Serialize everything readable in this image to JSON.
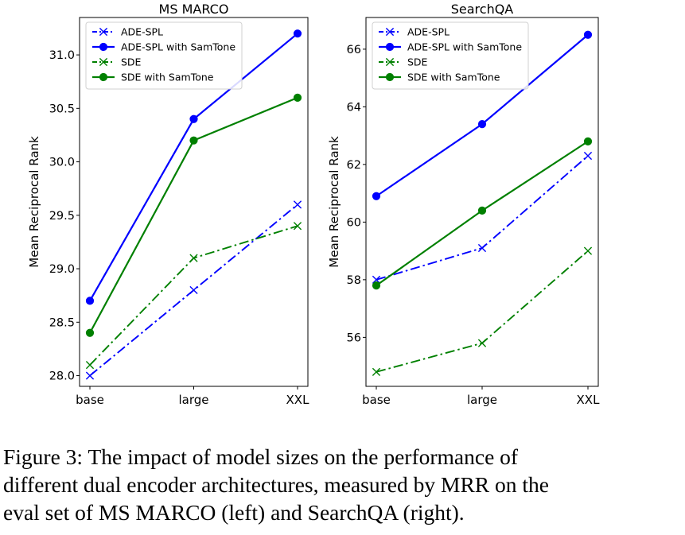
{
  "caption": {
    "line1": "Figure 3:  The impact of model sizes on the performance of",
    "line2": "different dual encoder architectures, measured by MRR on the",
    "line3": "eval set of MS MARCO (left) and SearchQA (right)."
  },
  "chart_data": [
    {
      "type": "line",
      "title": "MS MARCO",
      "xlabel": "",
      "ylabel": "Mean Reciprocal Rank",
      "categories": [
        "base",
        "large",
        "XXL"
      ],
      "ylim": [
        27.9,
        31.35
      ],
      "yticks": [
        28.0,
        28.5,
        29.0,
        29.5,
        30.0,
        30.5,
        31.0
      ],
      "ytick_labels": [
        "28.0",
        "28.5",
        "29.0",
        "29.5",
        "30.0",
        "30.5",
        "31.0"
      ],
      "legend_position": "top-left",
      "series": [
        {
          "name": "ADE-SPL",
          "values": [
            28.0,
            28.8,
            29.6
          ],
          "color": "#0000ff",
          "style": "dashdot",
          "marker": "x"
        },
        {
          "name": "ADE-SPL with SamTone",
          "values": [
            28.7,
            30.4,
            31.2
          ],
          "color": "#0000ff",
          "style": "solid",
          "marker": "o"
        },
        {
          "name": "SDE",
          "values": [
            28.1,
            29.1,
            29.4
          ],
          "color": "#008000",
          "style": "dashdot",
          "marker": "x"
        },
        {
          "name": "SDE with SamTone",
          "values": [
            28.4,
            30.2,
            30.6
          ],
          "color": "#008000",
          "style": "solid",
          "marker": "o"
        }
      ]
    },
    {
      "type": "line",
      "title": "SearchQA",
      "xlabel": "",
      "ylabel": "Mean Reciprocal Rank",
      "categories": [
        "base",
        "large",
        "XXL"
      ],
      "ylim": [
        54.3,
        67.1
      ],
      "yticks": [
        56,
        58,
        60,
        62,
        64,
        66
      ],
      "ytick_labels": [
        "56",
        "58",
        "60",
        "62",
        "64",
        "66"
      ],
      "legend_position": "top-left",
      "series": [
        {
          "name": "ADE-SPL",
          "values": [
            58.0,
            59.1,
            62.3
          ],
          "color": "#0000ff",
          "style": "dashdot",
          "marker": "x"
        },
        {
          "name": "ADE-SPL with SamTone",
          "values": [
            60.9,
            63.4,
            66.5
          ],
          "color": "#0000ff",
          "style": "solid",
          "marker": "o"
        },
        {
          "name": "SDE",
          "values": [
            54.8,
            55.8,
            59.0
          ],
          "color": "#008000",
          "style": "dashdot",
          "marker": "x"
        },
        {
          "name": "SDE with SamTone",
          "values": [
            57.8,
            60.4,
            62.8
          ],
          "color": "#008000",
          "style": "solid",
          "marker": "o"
        }
      ]
    }
  ]
}
